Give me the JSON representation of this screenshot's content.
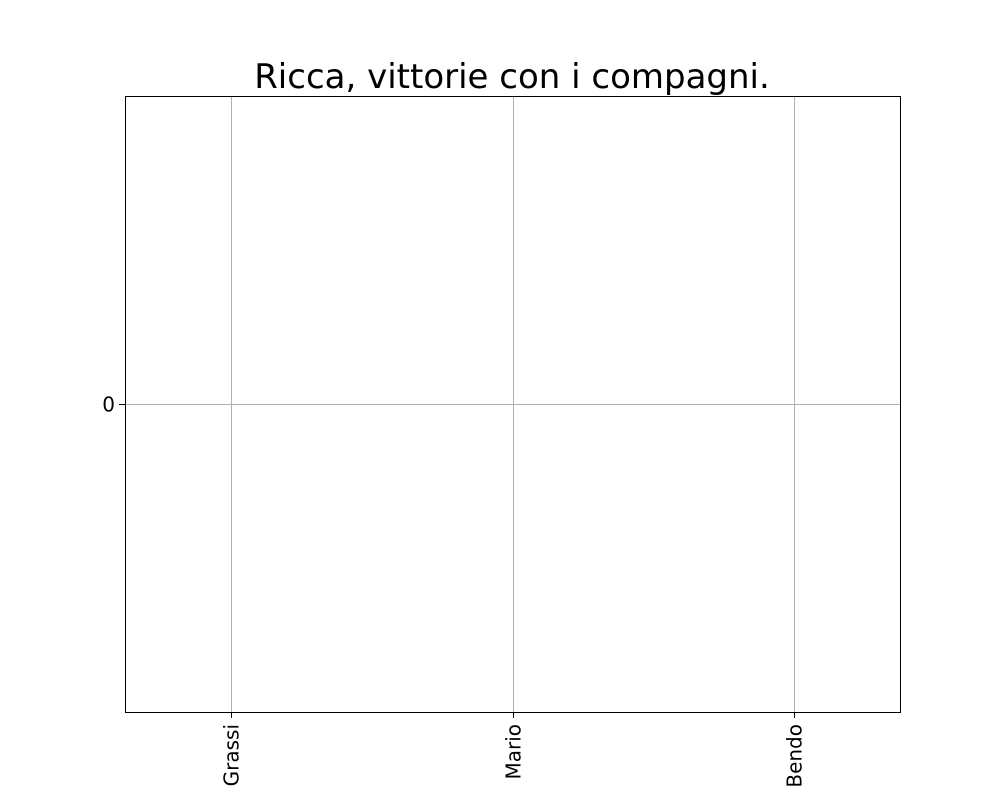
{
  "chart_data": {
    "type": "bar",
    "title": "Ricca, vittorie con i compagni.",
    "xlabel": "",
    "ylabel": "",
    "categories": [
      "Grassi",
      "Mario",
      "Bendo"
    ],
    "series": [
      {
        "values": [
          0,
          0,
          0
        ]
      }
    ],
    "y_ticks": [
      0
    ],
    "ylim": [
      -1,
      1
    ],
    "grid": true,
    "legend": "none",
    "colors": {
      "grid": "#b0b0b0",
      "axes": "#000000",
      "text": "#000000"
    }
  }
}
